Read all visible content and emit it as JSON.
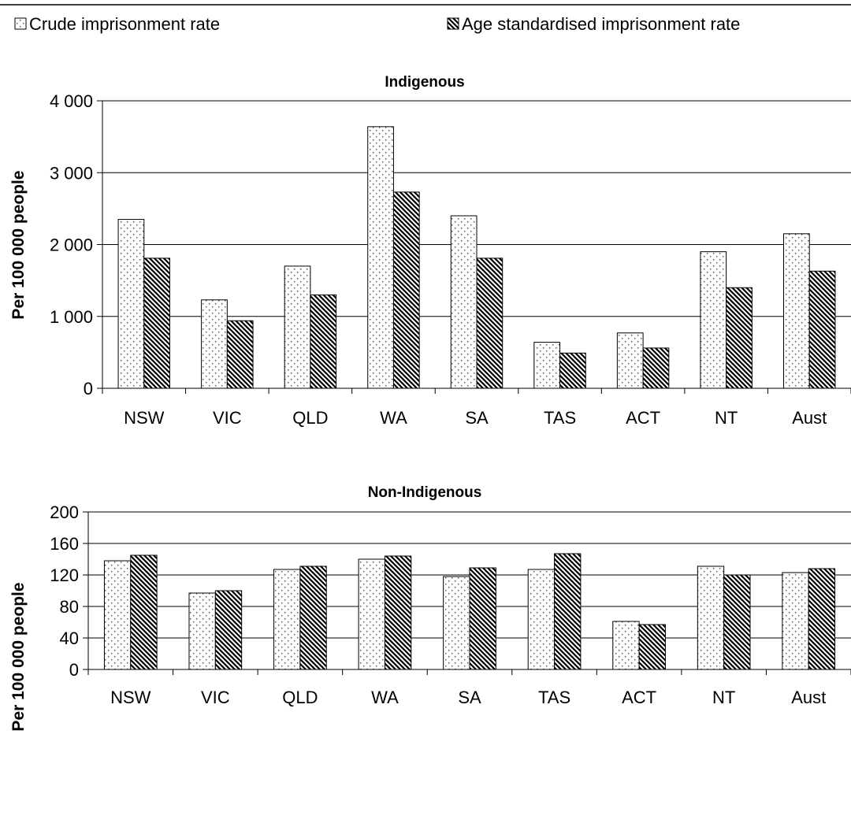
{
  "legend": {
    "crude_label": "Crude imprisonment rate",
    "age_label": "Age standardised imprisonment rate"
  },
  "chart_data": [
    {
      "type": "bar",
      "title": "Indigenous",
      "xlabel": "",
      "ylabel": "Per 100 000 people",
      "categories": [
        "NSW",
        "VIC",
        "QLD",
        "WA",
        "SA",
        "TAS",
        "ACT",
        "NT",
        "Aust"
      ],
      "series": [
        {
          "name": "Crude imprisonment rate",
          "values": [
            2350,
            1230,
            1700,
            3640,
            2400,
            640,
            770,
            1900,
            2150
          ]
        },
        {
          "name": "Age standardised imprisonment rate",
          "values": [
            1810,
            940,
            1300,
            2730,
            1810,
            490,
            560,
            1400,
            1630
          ]
        }
      ],
      "ylim": [
        0,
        4000
      ],
      "yticks": [
        0,
        1000,
        2000,
        3000,
        4000
      ],
      "ytick_labels": [
        "0",
        "1 000",
        "2 000",
        "3 000",
        "4 000"
      ],
      "grid": true
    },
    {
      "type": "bar",
      "title": "Non-Indigenous",
      "xlabel": "",
      "ylabel": "Per 100 000 people",
      "categories": [
        "NSW",
        "VIC",
        "QLD",
        "WA",
        "SA",
        "TAS",
        "ACT",
        "NT",
        "Aust"
      ],
      "series": [
        {
          "name": "Crude imprisonment rate",
          "values": [
            138,
            97,
            127,
            140,
            118,
            127,
            61,
            131,
            123
          ]
        },
        {
          "name": "Age standardised imprisonment rate",
          "values": [
            145,
            100,
            131,
            144,
            129,
            147,
            57,
            120,
            128
          ]
        }
      ],
      "ylim": [
        0,
        200
      ],
      "yticks": [
        0,
        40,
        80,
        120,
        160,
        200
      ],
      "ytick_labels": [
        "0",
        "40",
        "80",
        "120",
        "160",
        "200"
      ],
      "grid": true
    }
  ]
}
